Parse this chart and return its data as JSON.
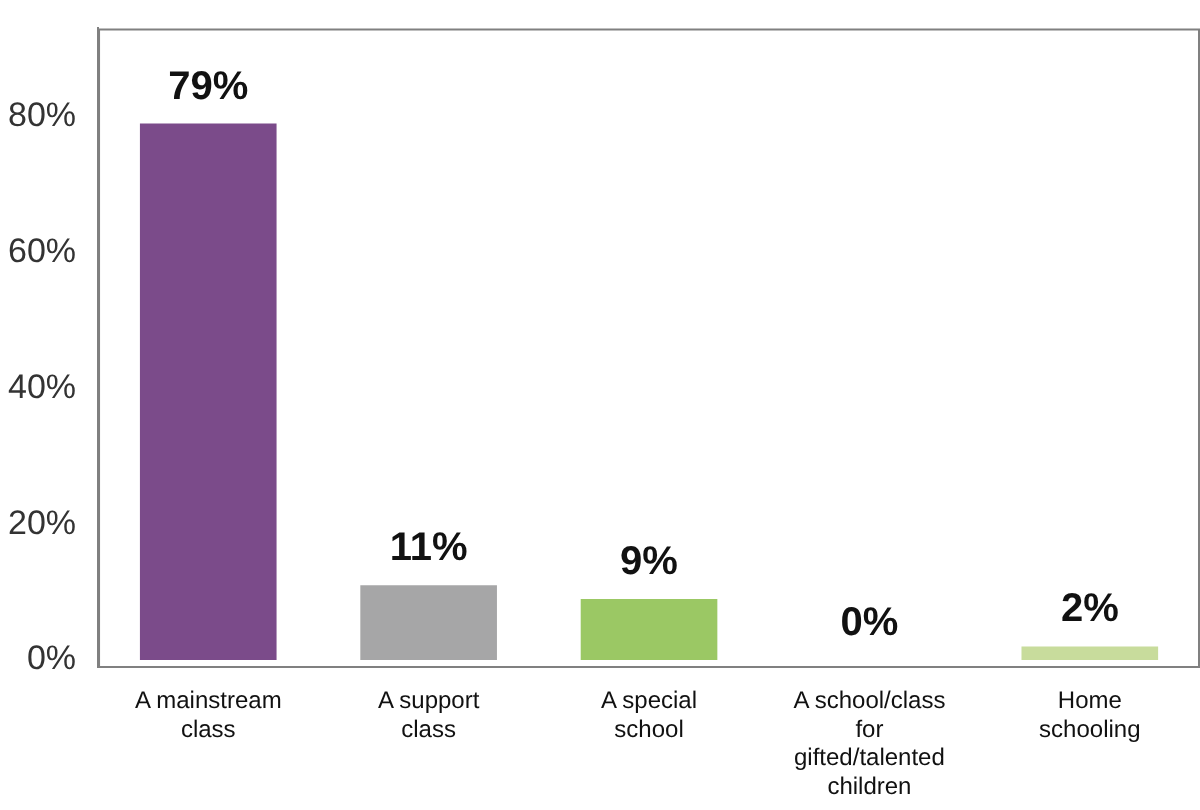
{
  "chart_data": {
    "type": "bar",
    "categories": [
      "A mainstream class",
      "A support class",
      "A special school",
      "A school/class for gifted/talented children",
      "Home schooling"
    ],
    "values": [
      79,
      11,
      9,
      0,
      2
    ],
    "colors": [
      "#7b4b8a",
      "#a6a6a7",
      "#9bc864",
      "#000000",
      "#c8dc9c"
    ],
    "value_labels": [
      "79%",
      "11%",
      "9%",
      "0%",
      "2%"
    ],
    "ylim": [
      -1,
      93
    ],
    "yticks": [
      {
        "value": 0,
        "label": "0%"
      },
      {
        "value": 20,
        "label": "20%"
      },
      {
        "value": 40,
        "label": "40%"
      },
      {
        "value": 60,
        "label": "60%"
      },
      {
        "value": 80,
        "label": "80%"
      }
    ],
    "grid": false,
    "legend": false
  }
}
